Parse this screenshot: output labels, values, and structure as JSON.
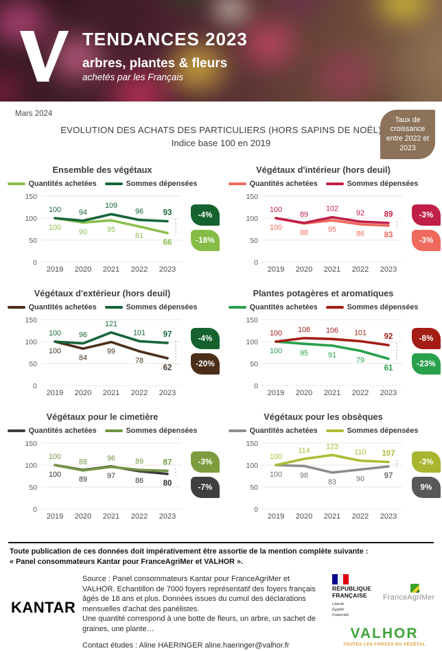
{
  "header": {
    "title": "TENDANCES 2023",
    "subtitle": "arbres, plantes & fleurs",
    "tagline": "achetés par les Français"
  },
  "intro": {
    "date": "Mars 2024",
    "title_line1": "EVOLUTION DES ACHATS DES PARTICULIERS (HORS SAPINS DE NOËL)",
    "title_line2": "Indice base 100 en 2019",
    "note_badge": "Taux de croissance entre 2022 et 2023"
  },
  "charts_shared": {
    "legend": {
      "quantities": "Quantités achetées",
      "sums": "Sommes dépensées"
    },
    "x_labels": [
      "2019",
      "2020",
      "2021",
      "2022",
      "2023"
    ],
    "y_ticks": [
      150,
      100,
      50,
      0
    ],
    "ylim": [
      0,
      150
    ],
    "grid": true,
    "legend_position": "top"
  },
  "chart_data": [
    {
      "type": "line",
      "title": "Ensemble des végétaux",
      "categories": [
        "2019",
        "2020",
        "2021",
        "2022",
        "2023"
      ],
      "series": [
        {
          "name": "Quantités achetées",
          "values": [
            100,
            90,
            95,
            81,
            66
          ],
          "color": "#8bbf4d",
          "badge_color": "#85bc45",
          "growth_2022_2023": "-18%"
        },
        {
          "name": "Sommes dépensées",
          "values": [
            100,
            94,
            109,
            96,
            93
          ],
          "color": "#166539",
          "badge_color": "#15622f",
          "growth_2022_2023": "-4%"
        }
      ]
    },
    {
      "type": "line",
      "title": "Végétaux d'intérieur (hors deuil)",
      "categories": [
        "2019",
        "2020",
        "2021",
        "2022",
        "2023"
      ],
      "series": [
        {
          "name": "Quantités achetées",
          "values": [
            100,
            88,
            95,
            86,
            83
          ],
          "color": "#ee6a5d",
          "badge_color": "#ee6a5d",
          "growth_2022_2023": "-3%"
        },
        {
          "name": "Sommes dépensées",
          "values": [
            100,
            89,
            102,
            92,
            89
          ],
          "color": "#c02048",
          "badge_color": "#c02048",
          "growth_2022_2023": "-3%"
        }
      ]
    },
    {
      "type": "line",
      "title": "Végétaux d'extérieur (hors deuil)",
      "categories": [
        "2019",
        "2020",
        "2021",
        "2022",
        "2023"
      ],
      "series": [
        {
          "name": "Quantités achetées",
          "values": [
            100,
            84,
            99,
            78,
            62
          ],
          "color": "#4b2e1a",
          "badge_color": "#4b2e1a",
          "label_color": "#463425",
          "growth_2022_2023": "-20%"
        },
        {
          "name": "Sommes dépensées",
          "values": [
            100,
            96,
            121,
            101,
            97
          ],
          "color": "#166539",
          "badge_color": "#15622f",
          "growth_2022_2023": "-4%"
        }
      ]
    },
    {
      "type": "line",
      "title": "Plantes potagères et aromatiques",
      "categories": [
        "2019",
        "2020",
        "2021",
        "2022",
        "2023"
      ],
      "series": [
        {
          "name": "Quantités achetées",
          "values": [
            100,
            95,
            91,
            79,
            61
          ],
          "color": "#28a04c",
          "badge_color": "#28a04c",
          "growth_2022_2023": "-23%"
        },
        {
          "name": "Sommes dépensées",
          "values": [
            100,
            108,
            106,
            101,
            92
          ],
          "color": "#a31d15",
          "badge_color": "#a31d15",
          "growth_2022_2023": "-8%"
        }
      ]
    },
    {
      "type": "line",
      "title": "Végétaux pour le cimetière",
      "categories": [
        "2019",
        "2020",
        "2021",
        "2022",
        "2023"
      ],
      "series": [
        {
          "name": "Quantités achetées",
          "values": [
            100,
            89,
            97,
            86,
            80
          ],
          "color": "#3c3c3c",
          "badge_color": "#3f3f3f",
          "label_color": "#2f2f2f",
          "growth_2022_2023": "-7%"
        },
        {
          "name": "Sommes dépensées",
          "values": [
            100,
            88,
            96,
            89,
            87
          ],
          "color": "#729544",
          "badge_color": "#7d9c3e",
          "growth_2022_2023": "-3%"
        }
      ]
    },
    {
      "type": "line",
      "title": "Végétaux pour les obsèques",
      "categories": [
        "2019",
        "2020",
        "2021",
        "2022",
        "2023"
      ],
      "series": [
        {
          "name": "Quantités achetées",
          "values": [
            100,
            98,
            83,
            90,
            97
          ],
          "color": "#8d8d8d",
          "badge_color": "#58585a",
          "label_color": "#6f6f6f",
          "growth_2022_2023": "9%"
        },
        {
          "name": "Sommes dépensées",
          "values": [
            100,
            114,
            123,
            110,
            107
          ],
          "color": "#aebc35",
          "badge_color": "#a8b52e",
          "growth_2022_2023": "-3%"
        }
      ]
    }
  ],
  "footer": {
    "mention_line1": "Toute publication de ces données doit impérativement être assortie de la mention complète suivante :",
    "mention_line2": "« Panel consommateurs Kantar pour FranceAgriMer et VALHOR ».",
    "kantar": "KANTAR",
    "source_p1": "Source : Panel consommateurs Kantar pour FranceAgriMer et VALHOR. Echantillon de 7000 foyers représentatif des foyers français âgés de 18 ans et plus. Données issues du cumul des déclarations mensuelles d'achat des panélistes.",
    "source_p2": "Une quantité correspond à une botte de fleurs, un arbre, un sachet de graines, une plante…",
    "source_p3": "Contact études : Aline HAERINGER aline.haeringer@valhor.fr",
    "logos": {
      "republique_francaise": {
        "name_line1": "RÉPUBLIQUE",
        "name_line2": "FRANÇAISE",
        "motto_1": "Liberté",
        "motto_2": "Égalité",
        "motto_3": "Fraternité"
      },
      "franceagrimer": "FranceAgriMer",
      "valhor_name": "VALHOR",
      "valhor_tagline": "TOUTES LES FORCES DU VÉGÉTAL"
    }
  }
}
